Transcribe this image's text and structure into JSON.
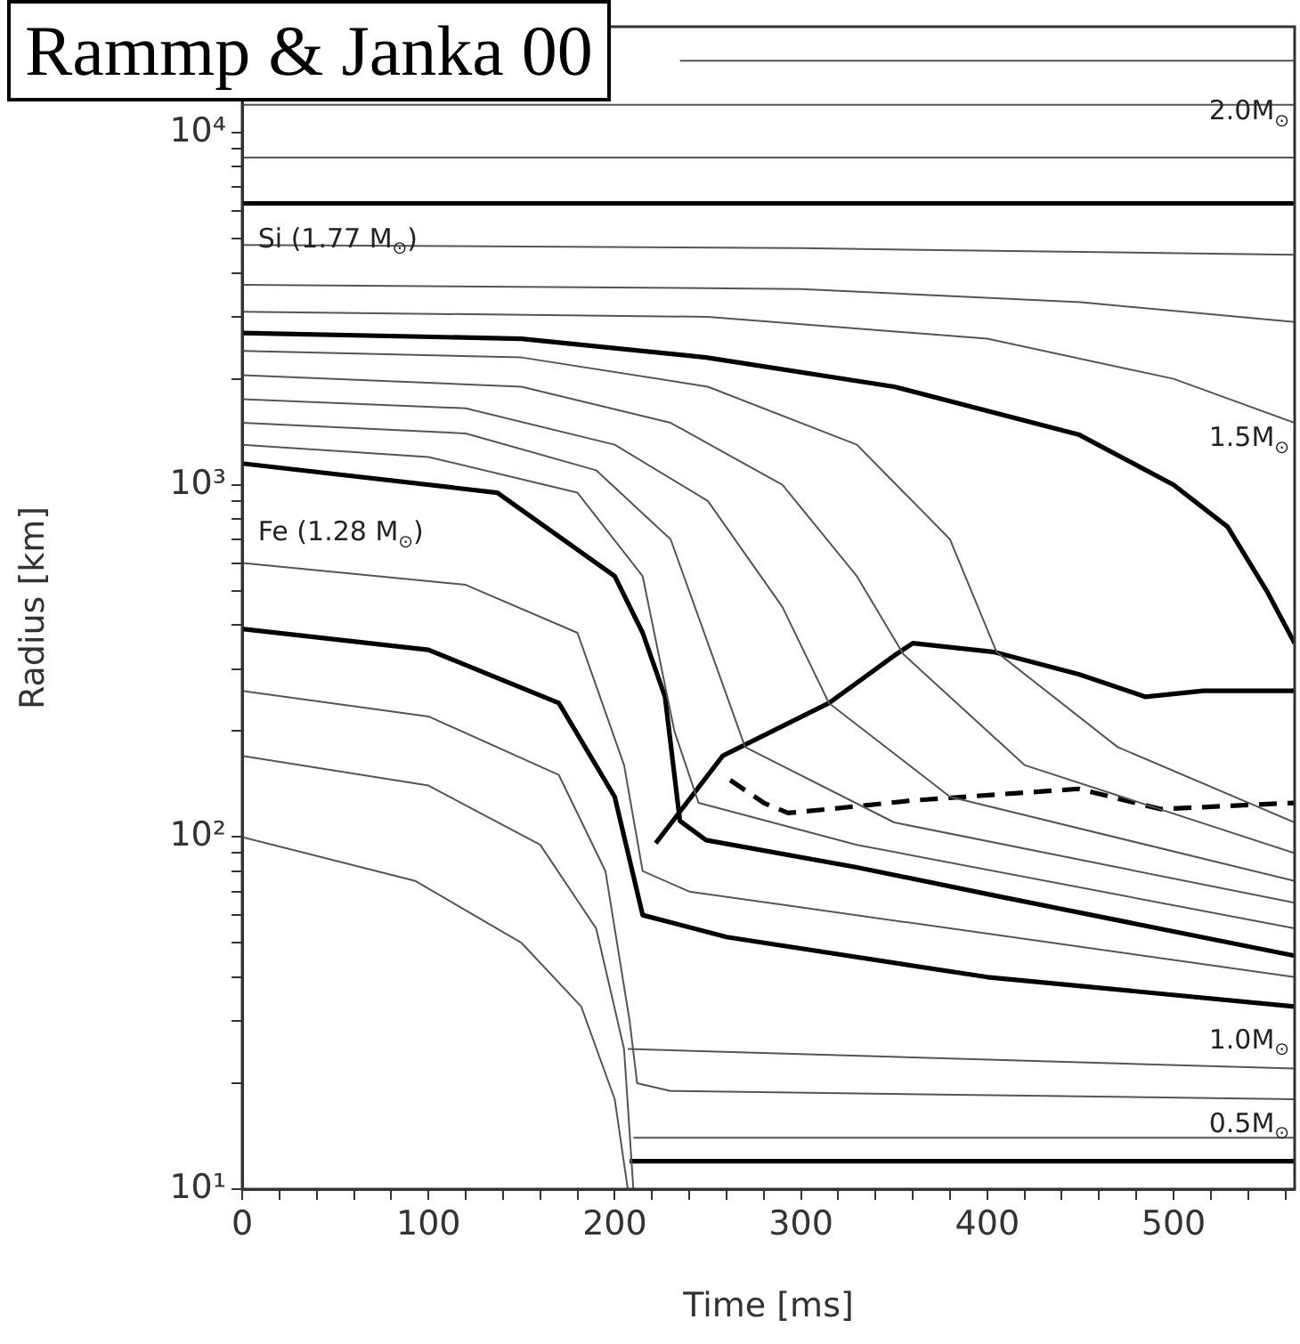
{
  "chart_data": {
    "type": "line",
    "title": "Rammp & Janka 00",
    "xlabel": "Time [ms]",
    "ylabel": "Radius [km]",
    "log": "y",
    "grid": false,
    "legend": false,
    "marker": "none",
    "xlim": [
      0,
      565
    ],
    "ylim": [
      10,
      20000
    ],
    "xticks": [
      0,
      {
        "value": 20,
        "label": null
      },
      {
        "value": 40,
        "label": null
      },
      {
        "value": 60,
        "label": null
      },
      {
        "value": 80,
        "label": null
      },
      100,
      {
        "value": 120,
        "label": null
      },
      {
        "value": 140,
        "label": null
      },
      {
        "value": 160,
        "label": null
      },
      {
        "value": 180,
        "label": null
      },
      200,
      {
        "value": 220,
        "label": null
      },
      {
        "value": 240,
        "label": null
      },
      {
        "value": 260,
        "label": null
      },
      {
        "value": 280,
        "label": null
      },
      300,
      {
        "value": 320,
        "label": null
      },
      {
        "value": 340,
        "label": null
      },
      {
        "value": 360,
        "label": null
      },
      {
        "value": 380,
        "label": null
      },
      400,
      {
        "value": 420,
        "label": null
      },
      {
        "value": 440,
        "label": null
      },
      {
        "value": 460,
        "label": null
      },
      {
        "value": 480,
        "label": null
      },
      500,
      {
        "value": 520,
        "label": null
      },
      {
        "value": 540,
        "label": null
      },
      {
        "value": 560,
        "label": null
      }
    ],
    "yticks": [
      {
        "value": 10,
        "label": "10¹"
      },
      {
        "value": 20,
        "label": null
      },
      {
        "value": 30,
        "label": null
      },
      {
        "value": 40,
        "label": null
      },
      {
        "value": 50,
        "label": null
      },
      {
        "value": 60,
        "label": null
      },
      {
        "value": 70,
        "label": null
      },
      {
        "value": 80,
        "label": null
      },
      {
        "value": 90,
        "label": null
      },
      {
        "value": 100,
        "label": "10²"
      },
      {
        "value": 200,
        "label": null
      },
      {
        "value": 300,
        "label": null
      },
      {
        "value": 400,
        "label": null
      },
      {
        "value": 500,
        "label": null
      },
      {
        "value": 600,
        "label": null
      },
      {
        "value": 700,
        "label": null
      },
      {
        "value": 800,
        "label": null
      },
      {
        "value": 900,
        "label": null
      },
      {
        "value": 1000,
        "label": "10³"
      },
      {
        "value": 2000,
        "label": null
      },
      {
        "value": 3000,
        "label": null
      },
      {
        "value": 4000,
        "label": null
      },
      {
        "value": 5000,
        "label": null
      },
      {
        "value": 6000,
        "label": null
      },
      {
        "value": 7000,
        "label": null
      },
      {
        "value": 8000,
        "label": null
      },
      {
        "value": 9000,
        "label": null
      },
      {
        "value": 10000,
        "label": "10⁴"
      },
      {
        "value": 20000,
        "label": null
      }
    ],
    "annotations": [
      "Si (1.77 M$_{⊙}$)",
      "Fe (1.28 M$_{⊙}$)",
      "2.0M$_{⊙}$",
      "1.5M$_{⊙}$",
      "1.0M$_{⊙}$",
      "0.5M$_{⊙}$"
    ],
    "series": [
      {
        "color": "#555555",
        "x": [
          235,
          565
        ],
        "values": [
          16000,
          16000
        ]
      },
      {
        "color": "#555555",
        "x": [
          0,
          565
        ],
        "values": [
          12000,
          12000
        ]
      },
      {
        "color": "#555555",
        "x": [
          0,
          565
        ],
        "values": [
          8500,
          8500
        ]
      },
      {
        "color": "#000000",
        "x": [
          0,
          565
        ],
        "values": [
          6300,
          6300
        ]
      },
      {
        "color": "#555555",
        "x": [
          0,
          300,
          565
        ],
        "values": [
          4800,
          4700,
          4500
        ]
      },
      {
        "color": "#555555",
        "x": [
          0,
          300,
          450,
          565
        ],
        "values": [
          3700,
          3600,
          3300,
          2900
        ]
      },
      {
        "color": "#555555",
        "x": [
          0,
          250,
          400,
          500,
          565
        ],
        "values": [
          3100,
          3000,
          2600,
          2000,
          1500
        ]
      },
      {
        "color": "#000000",
        "x": [
          0,
          150,
          249,
          350,
          449,
          500,
          529,
          550,
          565
        ],
        "values": [
          2700,
          2600,
          2300,
          1900,
          1390,
          1000,
          760,
          500,
          355
        ]
      },
      {
        "color": "#555555",
        "x": [
          0,
          150,
          250,
          330,
          380,
          405,
          470,
          565
        ],
        "values": [
          2400,
          2300,
          1900,
          1300,
          700,
          335,
          180,
          110
        ]
      },
      {
        "color": "#555555",
        "x": [
          0,
          150,
          230,
          290,
          330,
          355,
          420,
          565
        ],
        "values": [
          2050,
          1900,
          1500,
          1000,
          550,
          330,
          160,
          90
        ]
      },
      {
        "color": "#555555",
        "x": [
          0,
          120,
          200,
          250,
          290,
          315,
          380,
          565
        ],
        "values": [
          1750,
          1650,
          1300,
          900,
          450,
          240,
          130,
          75
        ]
      },
      {
        "color": "#555555",
        "x": [
          0,
          120,
          190,
          230,
          255,
          270,
          350,
          565
        ],
        "values": [
          1500,
          1400,
          1100,
          700,
          300,
          180,
          110,
          65
        ]
      },
      {
        "color": "#555555",
        "x": [
          0,
          100,
          180,
          215,
          232,
          245,
          330,
          565
        ],
        "values": [
          1300,
          1200,
          950,
          550,
          200,
          125,
          95,
          55
        ]
      },
      {
        "color": "#000000",
        "x": [
          0,
          137,
          200,
          215,
          227,
          235,
          249,
          330,
          405,
          565
        ],
        "values": [
          1150,
          950,
          550,
          380,
          250,
          111,
          98,
          82,
          68,
          46
        ]
      },
      {
        "color": "#000000",
        "x": [
          222,
          258,
          315,
          351,
          360,
          404,
          449,
          485,
          516,
          565
        ],
        "values": [
          96,
          170,
          240,
          330,
          355,
          335,
          290,
          250,
          260,
          260
        ]
      },
      {
        "color": "#000000",
        "line_style": "dashed",
        "x": [
          262,
          280,
          293,
          315,
          360,
          449,
          493,
          565
        ],
        "values": [
          145,
          125,
          117,
          120,
          127,
          137,
          120,
          125
        ]
      },
      {
        "color": "#000000",
        "x": [
          0,
          100,
          170,
          200,
          215,
          260,
          400,
          565
        ],
        "values": [
          390,
          340,
          240,
          130,
          60,
          52,
          40,
          33
        ]
      },
      {
        "color": "#555555",
        "x": [
          0,
          120,
          180,
          205,
          215,
          240,
          565
        ],
        "values": [
          600,
          520,
          380,
          160,
          80,
          70,
          40
        ]
      },
      {
        "color": "#555555",
        "x": [
          0,
          93,
          150,
          182,
          200,
          207
        ],
        "values": [
          100,
          75,
          50,
          33,
          18,
          10
        ]
      },
      {
        "color": "#555555",
        "x": [
          0,
          100,
          160,
          190,
          205,
          210
        ],
        "values": [
          170,
          140,
          95,
          55,
          25,
          10
        ]
      },
      {
        "color": "#555555",
        "x": [
          0,
          100,
          170,
          195,
          208,
          212,
          230,
          565
        ],
        "values": [
          260,
          220,
          150,
          80,
          30,
          20,
          19,
          18
        ]
      },
      {
        "color": "#555555",
        "x": [
          207,
          565
        ],
        "values": [
          25,
          22
        ]
      },
      {
        "color": "#555555",
        "x": [
          210,
          565
        ],
        "values": [
          14,
          14
        ]
      },
      {
        "color": "#000000",
        "x": [
          208,
          565
        ],
        "values": [
          12,
          12
        ]
      }
    ]
  }
}
